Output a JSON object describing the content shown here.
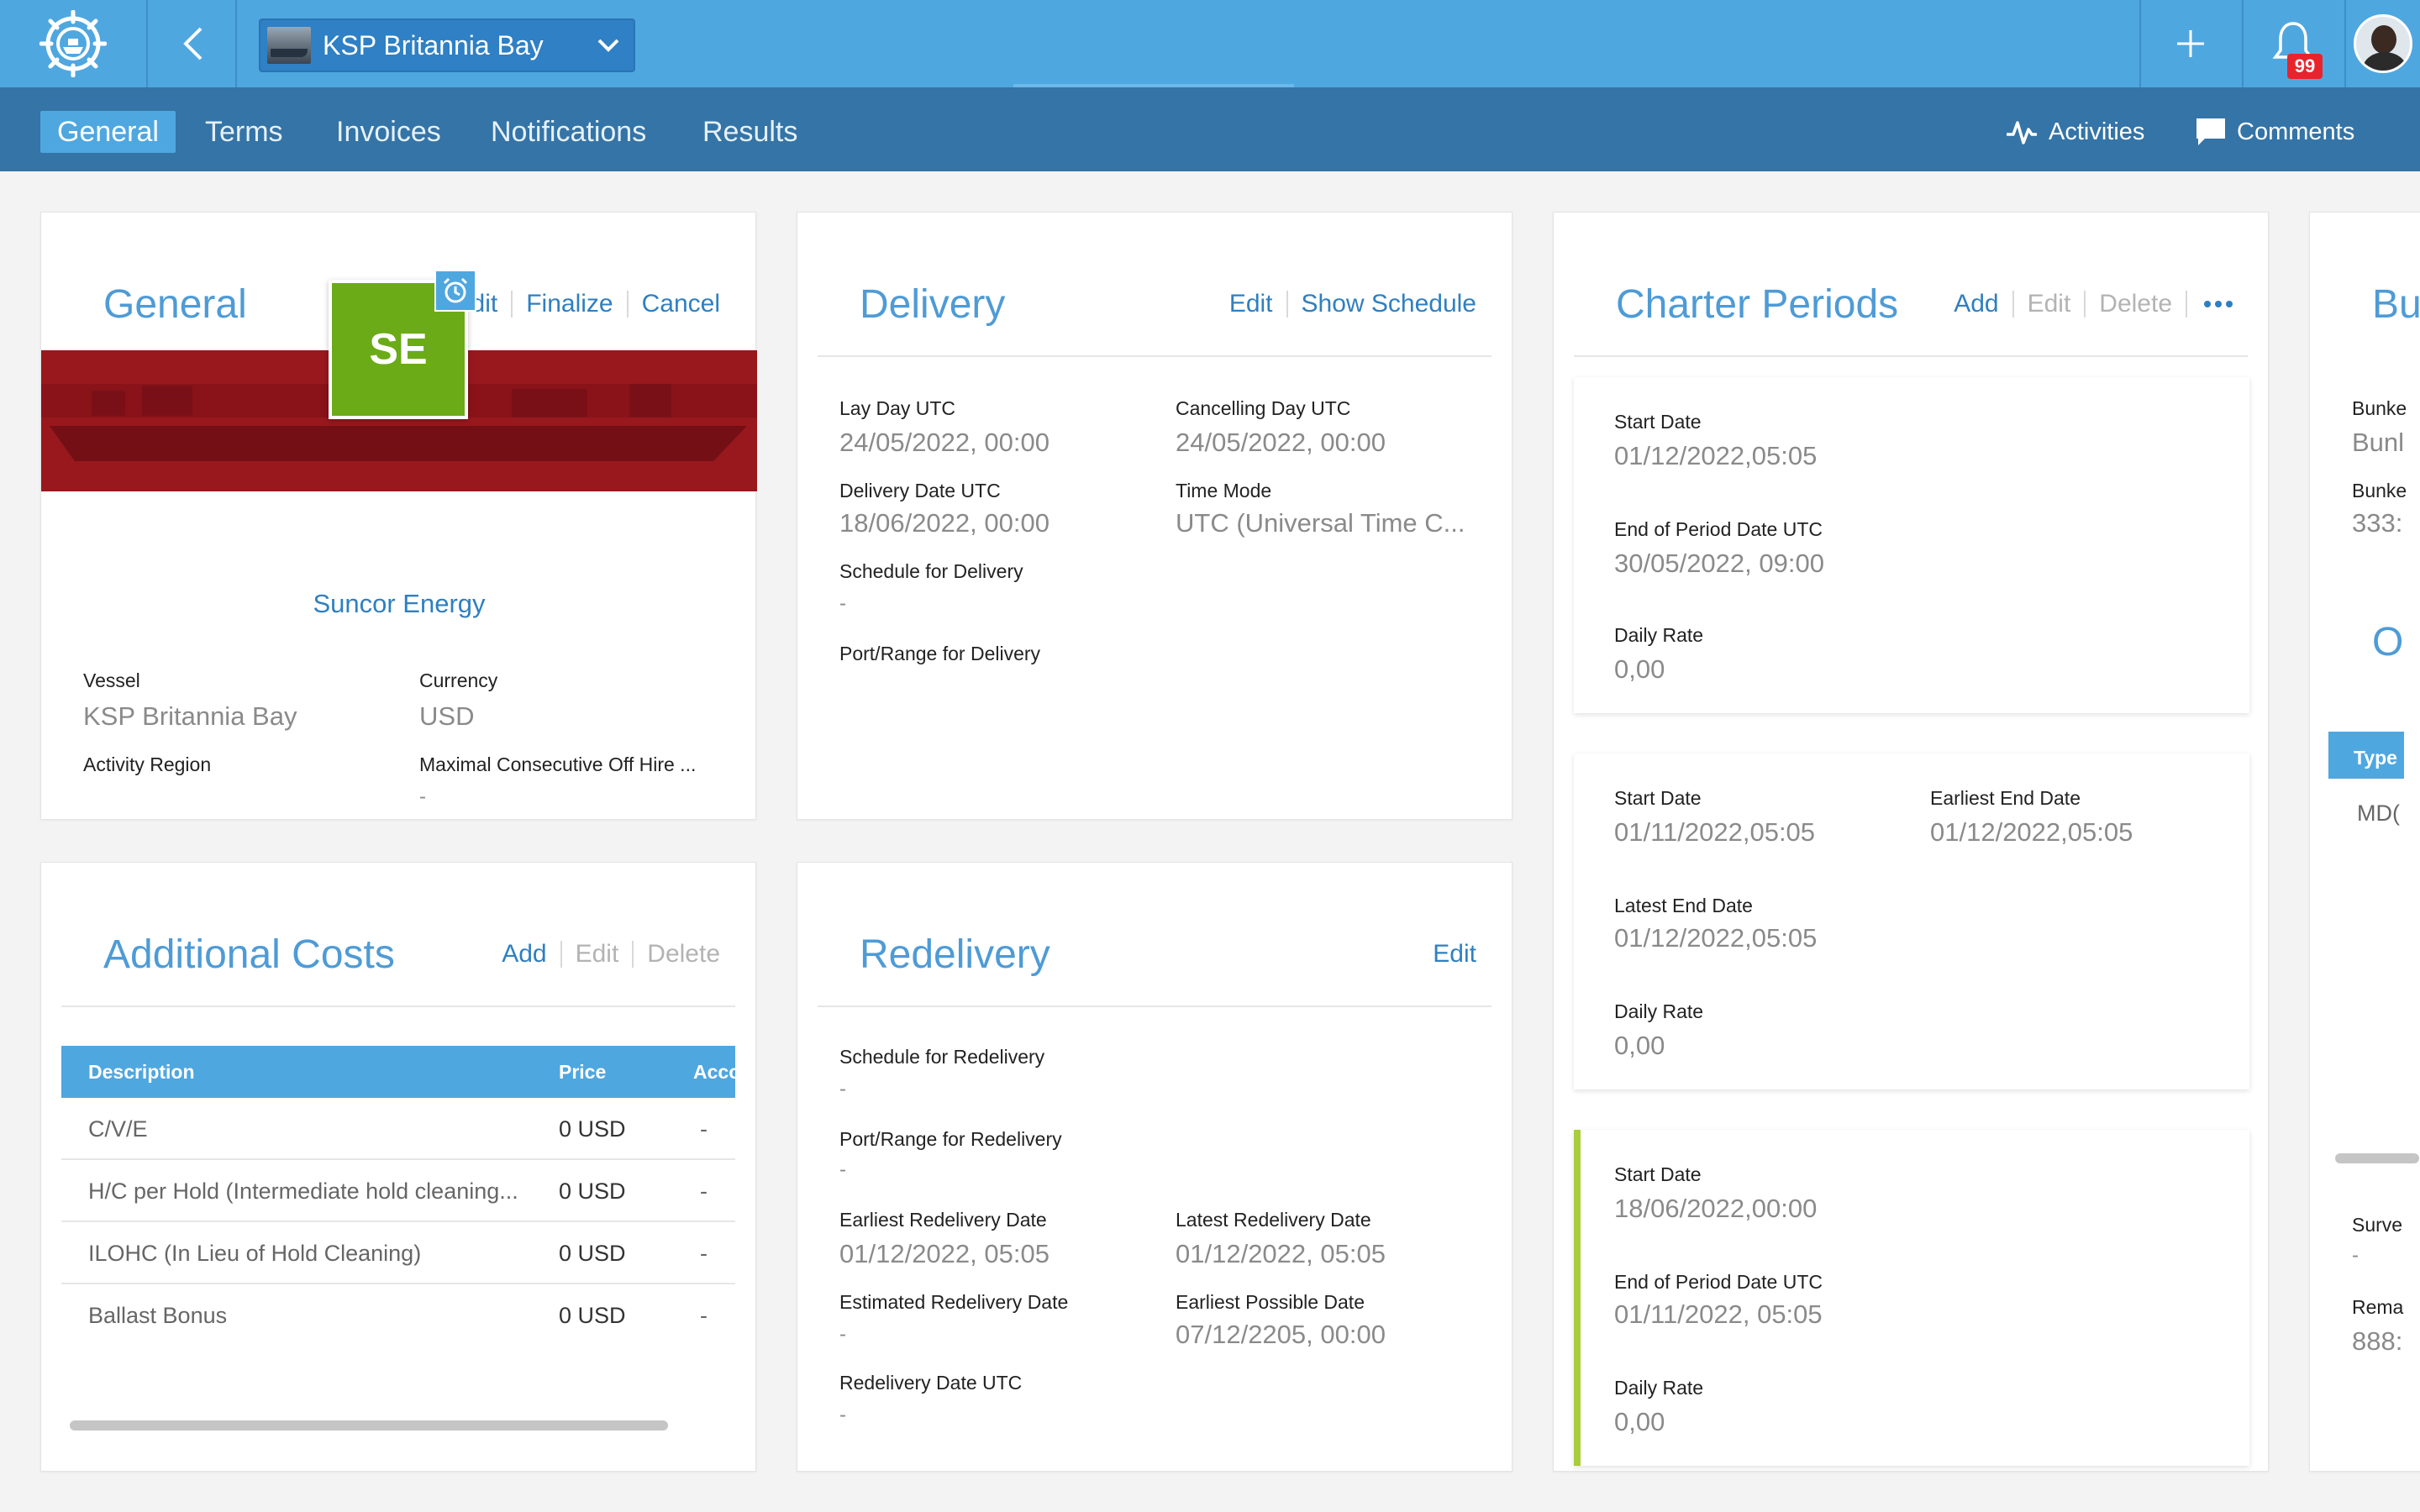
{
  "header": {
    "vessel_name": "KSP Britannia Bay",
    "notification_count": "99",
    "brand_color": "#4fa7e0"
  },
  "tabs": {
    "general": "General",
    "terms": "Terms",
    "invoices": "Invoices",
    "notifications": "Notifications",
    "results": "Results",
    "activities": "Activities",
    "comments": "Comments"
  },
  "general": {
    "title": "General",
    "edit": "Edit",
    "finalize": "Finalize",
    "cancel": "Cancel",
    "initials": "SE",
    "company": "Suncor Energy",
    "vessel_label": "Vessel",
    "vessel_value": "KSP Britannia Bay",
    "currency_label": "Currency",
    "currency_value": "USD",
    "region_label": "Activity Region",
    "offhire_label": "Maximal Consecutive Off Hire ...",
    "offhire_value": "-"
  },
  "delivery": {
    "title": "Delivery",
    "edit": "Edit",
    "show_schedule": "Show Schedule",
    "lay_day_label": "Lay Day UTC",
    "lay_day_value": "24/05/2022, 00:00",
    "cancelling_label": "Cancelling Day UTC",
    "cancelling_value": "24/05/2022, 00:00",
    "delivery_date_label": "Delivery Date UTC",
    "delivery_date_value": "18/06/2022, 00:00",
    "time_mode_label": "Time Mode",
    "time_mode_value": "UTC (Universal Time C...",
    "schedule_label": "Schedule for Delivery",
    "schedule_value": "-",
    "port_label": "Port/Range for Delivery"
  },
  "charter": {
    "title": "Charter Periods",
    "add": "Add",
    "edit": "Edit",
    "delete": "Delete",
    "p1": {
      "start_label": "Start Date",
      "start_value": "01/12/2022,05:05",
      "end_label": "End of Period Date UTC",
      "end_value": "30/05/2022, 09:00",
      "rate_label": "Daily Rate",
      "rate_value": "0,00"
    },
    "p2": {
      "start_label": "Start Date",
      "start_value": "01/11/2022,05:05",
      "earliest_label": "Earliest End Date",
      "earliest_value": "01/12/2022,05:05",
      "latest_label": "Latest End Date",
      "latest_value": "01/12/2022,05:05",
      "rate_label": "Daily Rate",
      "rate_value": "0,00"
    },
    "p3": {
      "start_label": "Start Date",
      "start_value": "18/06/2022,00:00",
      "end_label": "End of Period Date UTC",
      "end_value": "01/11/2022, 05:05",
      "rate_label": "Daily Rate",
      "rate_value": "0,00"
    }
  },
  "bunker_partial": {
    "title": "Bu",
    "l1": "Bunke",
    "v1": "Bunl",
    "l2": "Bunke",
    "v2": "333:",
    "o_title": "O",
    "type": "Type",
    "mdo": "MD(",
    "survey_label": "Surve",
    "survey_value": "-",
    "remarks_label": "Rema",
    "remarks_value": "888:"
  },
  "costs": {
    "title": "Additional Costs",
    "add": "Add",
    "edit": "Edit",
    "delete": "Delete",
    "col_desc": "Description",
    "col_price": "Price",
    "col_acc": "Acco",
    "rows": [
      {
        "desc": "C/V/E",
        "price": "0 USD",
        "acc": "-"
      },
      {
        "desc": "H/C per Hold (Intermediate hold cleaning...",
        "price": "0 USD",
        "acc": "-"
      },
      {
        "desc": "ILOHC (In Lieu of Hold Cleaning)",
        "price": "0 USD",
        "acc": "-"
      },
      {
        "desc": "Ballast Bonus",
        "price": "0 USD",
        "acc": "-"
      }
    ]
  },
  "redelivery": {
    "title": "Redelivery",
    "edit": "Edit",
    "schedule_label": "Schedule for Redelivery",
    "schedule_value": "-",
    "port_label": "Port/Range for Redelivery",
    "port_value": "-",
    "earliest_label": "Earliest Redelivery Date",
    "earliest_value": "01/12/2022, 05:05",
    "latest_label": "Latest Redelivery Date",
    "latest_value": "01/12/2022, 05:05",
    "estimated_label": "Estimated Redelivery Date",
    "estimated_value": "-",
    "possible_label": "Earliest Possible Date",
    "possible_value": "07/12/2205, 00:00",
    "date_label": "Redelivery Date UTC",
    "date_value": "-"
  }
}
